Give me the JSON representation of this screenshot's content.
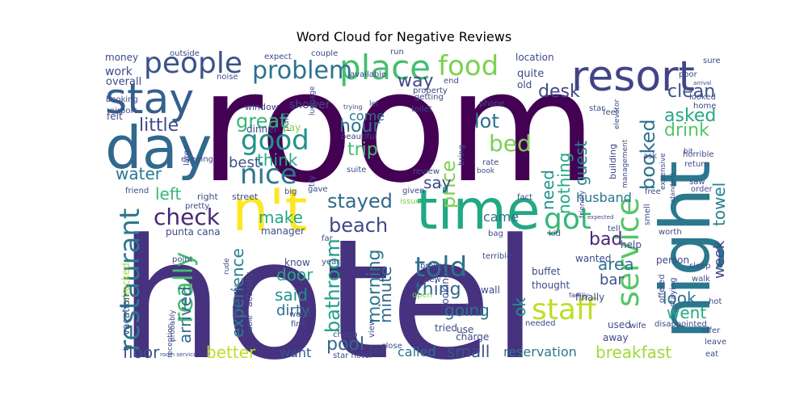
{
  "title": "Word Cloud for Negative Reviews",
  "words": [
    {
      "text": "room",
      "color": "#440154"
    },
    {
      "text": "hotel",
      "color": "#46327e"
    },
    {
      "text": "time",
      "color": "#22a884"
    },
    {
      "text": "n't",
      "color": "#fde725"
    },
    {
      "text": "night",
      "color": "#2a788e"
    },
    {
      "text": "resort",
      "color": "#414487"
    },
    {
      "text": "day",
      "color": "#31688e"
    },
    {
      "text": "stay",
      "color": "#355f8d"
    },
    {
      "text": "people",
      "color": "#3b528b"
    },
    {
      "text": "place",
      "color": "#44bf70"
    },
    {
      "text": "food",
      "color": "#7ad151"
    },
    {
      "text": "problem",
      "color": "#2c728e"
    },
    {
      "text": "good",
      "color": "#21918c"
    },
    {
      "text": "nice",
      "color": "#2a788e"
    },
    {
      "text": "staff",
      "color": "#bddf26"
    },
    {
      "text": "service",
      "color": "#54c568"
    },
    {
      "text": "got",
      "color": "#35b779"
    },
    {
      "text": "told",
      "color": "#2c728e"
    },
    {
      "text": "restaurant",
      "color": "#2a788e"
    },
    {
      "text": "really",
      "color": "#44bf70"
    },
    {
      "text": "check",
      "color": "#482878"
    },
    {
      "text": "bed",
      "color": "#7ad151"
    },
    {
      "text": "beach",
      "color": "#3e4a89"
    },
    {
      "text": "stayed",
      "color": "#31688e"
    },
    {
      "text": "great",
      "color": "#35b779"
    },
    {
      "text": "bathroom",
      "color": "#1f9e89"
    },
    {
      "text": "clean",
      "color": "#3b528b"
    },
    {
      "text": "drink",
      "color": "#54c568"
    },
    {
      "text": "asked",
      "color": "#22a884"
    },
    {
      "text": "booked",
      "color": "#2c728e"
    },
    {
      "text": "way",
      "color": "#3e4a89"
    },
    {
      "text": "desk",
      "color": "#3e4a89"
    },
    {
      "text": "price",
      "color": "#7ad151"
    },
    {
      "text": "trip",
      "color": "#44bf70"
    },
    {
      "text": "hour",
      "color": "#2c728e"
    },
    {
      "text": "lot",
      "color": "#2c728e"
    },
    {
      "text": "little",
      "color": "#3e4a89"
    },
    {
      "text": "water",
      "color": "#2a788e"
    },
    {
      "text": "think",
      "color": "#22a884"
    },
    {
      "text": "best",
      "color": "#3b528b"
    },
    {
      "text": "guest",
      "color": "#26828e"
    },
    {
      "text": "need",
      "color": "#21918c"
    },
    {
      "text": "nothing",
      "color": "#22a884"
    },
    {
      "text": "towel",
      "color": "#26828e"
    },
    {
      "text": "left",
      "color": "#35b779"
    },
    {
      "text": "make",
      "color": "#22a884"
    },
    {
      "text": "say",
      "color": "#3e4a89"
    },
    {
      "text": "came",
      "color": "#2c728e"
    },
    {
      "text": "husband",
      "color": "#2c728e"
    },
    {
      "text": "bad",
      "color": "#482878"
    },
    {
      "text": "area",
      "color": "#2c728e"
    },
    {
      "text": "week",
      "color": "#3e4a89"
    },
    {
      "text": "bar",
      "color": "#3b528b"
    },
    {
      "text": "look",
      "color": "#2c728e"
    },
    {
      "text": "went",
      "color": "#22a884"
    },
    {
      "text": "experience",
      "color": "#26828e"
    },
    {
      "text": "door",
      "color": "#22a884"
    },
    {
      "text": "said",
      "color": "#21918c"
    },
    {
      "text": "dirty",
      "color": "#2c728e"
    },
    {
      "text": "morning",
      "color": "#2a788e"
    },
    {
      "text": "minute",
      "color": "#31688e"
    },
    {
      "text": "pool",
      "color": "#31688e"
    },
    {
      "text": "thing",
      "color": "#31688e"
    },
    {
      "text": "going",
      "color": "#2c728e"
    },
    {
      "text": "ok",
      "color": "#21918c"
    },
    {
      "text": "arrived",
      "color": "#31688e"
    },
    {
      "text": "better",
      "color": "#bddf26"
    },
    {
      "text": "floor",
      "color": "#3b528b"
    },
    {
      "text": "small",
      "color": "#3b528b"
    },
    {
      "text": "breakfast",
      "color": "#a0da39"
    },
    {
      "text": "reservation",
      "color": "#2a788e"
    },
    {
      "text": "called",
      "color": "#2c728e"
    },
    {
      "text": "want",
      "color": "#3b528b"
    },
    {
      "text": "come",
      "color": "#2c728e"
    },
    {
      "text": "shower",
      "color": "#3e4a89"
    },
    {
      "text": "work",
      "color": "#3e4a89"
    },
    {
      "text": "overall",
      "color": "#3e4a89"
    },
    {
      "text": "felt",
      "color": "#3e4a89"
    },
    {
      "text": "money",
      "color": "#3e4a89"
    },
    {
      "text": "quite",
      "color": "#3e4a89"
    },
    {
      "text": "location",
      "color": "#3e4a89"
    },
    {
      "text": "old",
      "color": "#3e4a89"
    },
    {
      "text": "paid",
      "color": "#2c728e"
    },
    {
      "text": "window",
      "color": "#3e4a89"
    },
    {
      "text": "dinner",
      "color": "#3e4a89"
    },
    {
      "text": "pay",
      "color": "#7ad151"
    },
    {
      "text": "street",
      "color": "#3e4a89"
    },
    {
      "text": "punta cana",
      "color": "#3e4a89"
    },
    {
      "text": "checked",
      "color": "#a0da39"
    },
    {
      "text": "vacation",
      "color": "#3e4a89"
    },
    {
      "text": "manager",
      "color": "#3e4a89"
    },
    {
      "text": "actually",
      "color": "#3e4a89"
    },
    {
      "text": "know",
      "color": "#3e4a89"
    },
    {
      "text": "wall",
      "color": "#3e4a89"
    },
    {
      "text": "buffet",
      "color": "#3e4a89"
    },
    {
      "text": "thought",
      "color": "#3e4a89"
    },
    {
      "text": "wanted",
      "color": "#3e4a89"
    },
    {
      "text": "finally",
      "color": "#3e4a89"
    },
    {
      "text": "person",
      "color": "#3e4a89"
    },
    {
      "text": "help",
      "color": "#3e4a89"
    },
    {
      "text": "used",
      "color": "#3e4a89"
    },
    {
      "text": "away",
      "color": "#3e4a89"
    },
    {
      "text": "charge",
      "color": "#3e4a89"
    },
    {
      "text": "tried",
      "color": "#3e4a89"
    },
    {
      "text": "use",
      "color": "#3e4a89"
    },
    {
      "text": "looking",
      "color": "#3e4a89"
    },
    {
      "text": "hot",
      "color": "#3e4a89"
    },
    {
      "text": "sleep",
      "color": "#3e4a89"
    },
    {
      "text": "walk",
      "color": "#3e4a89"
    },
    {
      "text": "order",
      "color": "#3e4a89"
    },
    {
      "text": "free",
      "color": "#3e4a89"
    },
    {
      "text": "friendly",
      "color": "#3e4a89"
    },
    {
      "text": "fact",
      "color": "#3e4a89"
    },
    {
      "text": "bag",
      "color": "#3e4a89"
    },
    {
      "text": "terrible",
      "color": "#3e4a89"
    },
    {
      "text": "review",
      "color": "#3e4a89"
    },
    {
      "text": "given",
      "color": "#3e4a89"
    },
    {
      "text": "issue",
      "color": "#7ad151"
    },
    {
      "text": "gave",
      "color": "#3e4a89"
    },
    {
      "text": "big",
      "color": "#3e4a89"
    },
    {
      "text": "friend",
      "color": "#3e4a89"
    },
    {
      "text": "pretty",
      "color": "#3e4a89"
    },
    {
      "text": "right",
      "color": "#3e4a89"
    },
    {
      "text": "year",
      "color": "#3e4a89"
    },
    {
      "text": "far",
      "color": "#3e4a89"
    },
    {
      "text": "broken",
      "color": "#3e4a89"
    },
    {
      "text": "new",
      "color": "#3e4a89"
    },
    {
      "text": "open",
      "color": "#7ad151"
    },
    {
      "text": "fine",
      "color": "#3e4a89"
    },
    {
      "text": "worst",
      "color": "#3e4a89"
    },
    {
      "text": "definitely",
      "color": "#3e4a89"
    },
    {
      "text": "rude",
      "color": "#3e4a89"
    },
    {
      "text": "probably",
      "color": "#3e4a89"
    },
    {
      "text": "point",
      "color": "#3e4a89"
    },
    {
      "text": "reception",
      "color": "#3e4a89"
    },
    {
      "text": "table",
      "color": "#3e4a89"
    },
    {
      "text": "room service",
      "color": "#3e4a89"
    },
    {
      "text": "star hotel",
      "color": "#3e4a89"
    },
    {
      "text": "city",
      "color": "#3e4a89"
    },
    {
      "text": "view",
      "color": "#3e4a89"
    },
    {
      "text": "close",
      "color": "#3e4a89"
    },
    {
      "text": "cheap",
      "color": "#3e4a89"
    },
    {
      "text": "needed",
      "color": "#3e4a89"
    },
    {
      "text": "wife",
      "color": "#3e4a89"
    },
    {
      "text": "disappointed",
      "color": "#3e4a89"
    },
    {
      "text": "offer",
      "color": "#3e4a89"
    },
    {
      "text": "leave",
      "color": "#3e4a89"
    },
    {
      "text": "eat",
      "color": "#3e4a89"
    },
    {
      "text": "staying",
      "color": "#3e4a89"
    },
    {
      "text": "offered",
      "color": "#3e4a89"
    },
    {
      "text": "kid",
      "color": "#3e4a89"
    },
    {
      "text": "family",
      "color": "#3e4a89"
    },
    {
      "text": "tell",
      "color": "#3e4a89"
    },
    {
      "text": "expected",
      "color": "#3e4a89"
    },
    {
      "text": "worth",
      "color": "#3e4a89"
    },
    {
      "text": "smell",
      "color": "#3e4a89"
    },
    {
      "text": "saw",
      "color": "#3e4a89"
    },
    {
      "text": "standard",
      "color": "#3e4a89"
    },
    {
      "text": "return",
      "color": "#3e4a89"
    },
    {
      "text": "horrible",
      "color": "#3e4a89"
    },
    {
      "text": "expensive",
      "color": "#3e4a89"
    },
    {
      "text": "management",
      "color": "#3e4a89"
    },
    {
      "text": "building",
      "color": "#3e4a89"
    },
    {
      "text": "bit",
      "color": "#3e4a89"
    },
    {
      "text": "home",
      "color": "#3e4a89"
    },
    {
      "text": "looked",
      "color": "#3e4a89"
    },
    {
      "text": "sure",
      "color": "#3e4a89"
    },
    {
      "text": "poor",
      "color": "#3e4a89"
    },
    {
      "text": "arrival",
      "color": "#3e4a89"
    },
    {
      "text": "ask",
      "color": "#3e4a89"
    },
    {
      "text": "star",
      "color": "#3e4a89"
    },
    {
      "text": "feel",
      "color": "#3e4a89"
    },
    {
      "text": "phone",
      "color": "#3e4a89"
    },
    {
      "text": "toilet",
      "color": "#3e4a89"
    },
    {
      "text": "getting",
      "color": "#3e4a89"
    },
    {
      "text": "property",
      "color": "#3e4a89"
    },
    {
      "text": "end",
      "color": "#3e4a89"
    },
    {
      "text": "available",
      "color": "#3e4a89"
    },
    {
      "text": "run",
      "color": "#3e4a89"
    },
    {
      "text": "couple",
      "color": "#3e4a89"
    },
    {
      "text": "expect",
      "color": "#3e4a89"
    },
    {
      "text": "noise",
      "color": "#3e4a89"
    },
    {
      "text": "outside",
      "color": "#3e4a89"
    },
    {
      "text": "booking",
      "color": "#3e4a89"
    },
    {
      "text": "airport",
      "color": "#3e4a89"
    },
    {
      "text": "evening",
      "color": "#3e4a89"
    },
    {
      "text": "large",
      "color": "#3e4a89"
    },
    {
      "text": "luggage",
      "color": "#3e4a89"
    },
    {
      "text": "beautiful",
      "color": "#3e4a89"
    },
    {
      "text": "trying",
      "color": "#3e4a89"
    },
    {
      "text": "let",
      "color": "#3e4a89"
    },
    {
      "text": "suite",
      "color": "#3e4a89"
    },
    {
      "text": "try",
      "color": "#3e4a89"
    },
    {
      "text": "bring",
      "color": "#3e4a89"
    },
    {
      "text": "rate",
      "color": "#3e4a89"
    },
    {
      "text": "book",
      "color": "#3e4a89"
    },
    {
      "text": "elevator",
      "color": "#3e4a89"
    }
  ]
}
